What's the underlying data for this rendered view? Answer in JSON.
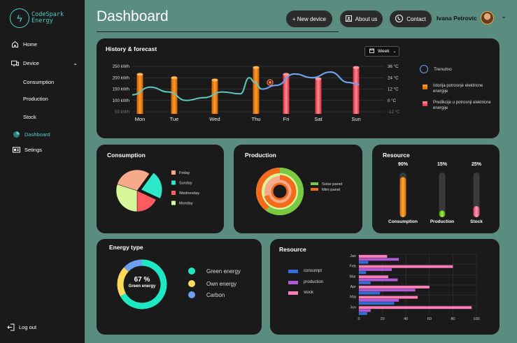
{
  "app": {
    "logo_line1": "CodeSpark",
    "logo_line2": "Energy"
  },
  "sidebar": {
    "items": [
      {
        "label": "Home"
      },
      {
        "label": "Device"
      },
      {
        "label": "Consumption"
      },
      {
        "label": "Production"
      },
      {
        "label": "Stock"
      },
      {
        "label": "Dashboard"
      },
      {
        "label": "Setings"
      }
    ],
    "logout": "Log out"
  },
  "header": {
    "title": "Dashboard",
    "new_device": "+ New device",
    "about": "About us",
    "contact": "Contact",
    "user_name": "Ivana Petrovic"
  },
  "colors": {
    "accent": "#4ecdc4",
    "orange": "#f0820f",
    "red": "#ff4d5a",
    "green": "#7ac943",
    "blue": "#6e9ff0"
  },
  "history": {
    "title": "History & forecast",
    "period": "Week",
    "legend": {
      "now": "Trenutno",
      "history": "Istorija potrosnje elektricne energije",
      "forecast": "Predikcije u potrosnji elektricne energije"
    },
    "chart_data": {
      "type": "bar",
      "title": "History & forecast",
      "categories": [
        "Mon",
        "Tue",
        "Wed",
        "Thu",
        "Fri",
        "Sat",
        "Sun"
      ],
      "y_left_ticks": [
        "250 kWh",
        "200 kWh",
        "150 kWh",
        "100 kWh",
        "50 kWh"
      ],
      "y_right_ticks": [
        "36 °C",
        "24 °C",
        "12 °C",
        "0 °C",
        "-12 °C"
      ],
      "ylim": [
        50,
        250
      ],
      "series": [
        {
          "name": "Istorija potrosnje elektricne energije",
          "kind": "history",
          "values": [
            215,
            200,
            190,
            245,
            null,
            null,
            null
          ]
        },
        {
          "name": "Predikcije u potrosnji elektricne energije",
          "kind": "forecast",
          "values": [
            null,
            null,
            null,
            null,
            215,
            195,
            245
          ]
        }
      ],
      "temperature": {
        "unit": "°C",
        "ylim": [
          -12,
          36
        ],
        "x": [
          0,
          0.5,
          1,
          1.5,
          2,
          2.5,
          3,
          3.25,
          3.4,
          3.6,
          4,
          4.5,
          5,
          5.5,
          6,
          6.3
        ],
        "values": [
          6,
          14,
          9,
          0,
          3,
          9,
          7,
          24,
          19,
          12,
          16,
          28,
          24,
          30,
          19,
          17
        ]
      },
      "current_marker": {
        "category": "Thu",
        "temperature": 19
      }
    }
  },
  "consumption": {
    "title": "Consumption",
    "chart_data": {
      "type": "pie",
      "categories": [
        "Friday",
        "Sunday",
        "Wednesday",
        "Monday"
      ],
      "values": [
        30,
        22,
        18,
        30
      ]
    },
    "colors": [
      "#f7a98c",
      "#2ee8c8",
      "#ff5a60",
      "#d8f59a"
    ]
  },
  "production": {
    "title": "Production",
    "chart_data": {
      "type": "pie",
      "categories": [
        "Solar panel",
        "Mini panel"
      ],
      "values": [
        60,
        40
      ]
    },
    "colors": [
      "#7ac943",
      "#f36a1b"
    ]
  },
  "resource": {
    "title": "Resource",
    "chart_data": {
      "type": "bar",
      "categories": [
        "Consumption",
        "Production",
        "Stock"
      ],
      "values": [
        90,
        15,
        25
      ],
      "value_labels": [
        "90%",
        "15%",
        "25%"
      ],
      "ylim": [
        0,
        100
      ]
    }
  },
  "energy": {
    "title": "Energy type",
    "percent": "67 %",
    "sub": "Green energy",
    "legend": [
      "Green energy",
      "Own energy",
      "Carbon"
    ],
    "chart_data": {
      "type": "pie",
      "categories": [
        "Green energy",
        "Own energy",
        "Carbon"
      ],
      "values": [
        67,
        20,
        13
      ]
    },
    "colors": [
      "#1ee8c3",
      "#ffd95a",
      "#6e9ff0"
    ]
  },
  "resource2": {
    "title": "Resource",
    "legend": [
      "consumpt",
      "production",
      "stock"
    ],
    "chart_data": {
      "type": "bar",
      "orientation": "horizontal",
      "categories": [
        "Jan",
        "Feb",
        "Mar",
        "Apr",
        "Mai",
        "Jun"
      ],
      "x_ticks": [
        "0",
        "20",
        "40",
        "60",
        "80",
        "100"
      ],
      "xlim": [
        0,
        100
      ],
      "series": [
        {
          "name": "consumpt",
          "values": [
            8,
            6,
            10,
            18,
            30,
            7
          ]
        },
        {
          "name": "production",
          "values": [
            34,
            28,
            33,
            48,
            34,
            10
          ]
        },
        {
          "name": "stock",
          "values": [
            24,
            80,
            25,
            60,
            50,
            96
          ]
        }
      ],
      "colors": [
        "#2f6fd6",
        "#b15ad8",
        "#ff7eb9"
      ]
    }
  }
}
